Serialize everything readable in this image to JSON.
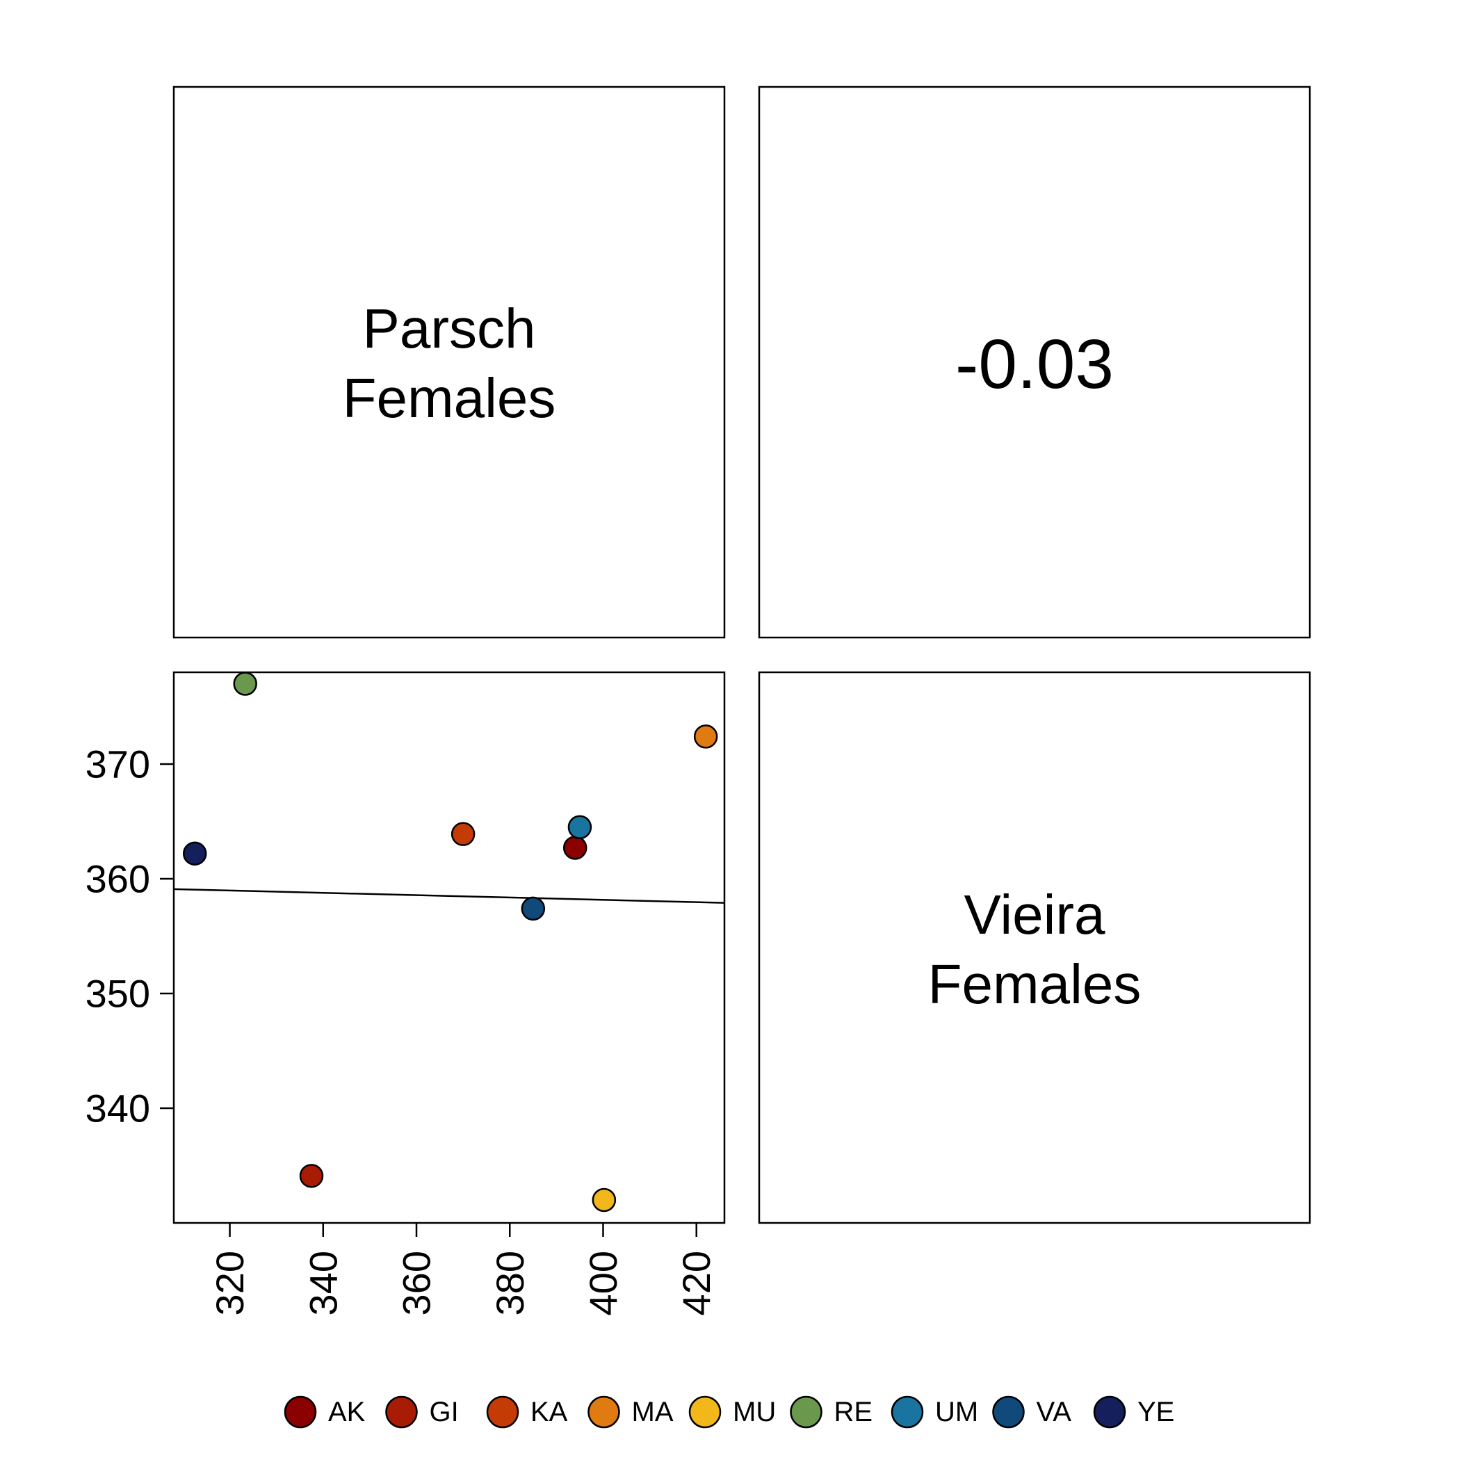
{
  "chart_data": {
    "type": "scatter",
    "layout": "pairs",
    "variables": [
      [
        "Parsch",
        "Females"
      ],
      [
        "Vieira",
        "Females"
      ]
    ],
    "correlation": "-0.03",
    "xlim": [
      308,
      426
    ],
    "ylim": [
      330,
      378
    ],
    "x_ticks": [
      320,
      340,
      360,
      380,
      400,
      420
    ],
    "y_ticks": [
      340,
      350,
      360,
      370
    ],
    "fit_line": {
      "x": [
        308,
        426
      ],
      "y": [
        359.1,
        357.9
      ]
    },
    "points": [
      {
        "label": "AK",
        "x": 394,
        "y": 362.7,
        "color": "#8B0000"
      },
      {
        "label": "GI",
        "x": 337.5,
        "y": 334.1,
        "color": "#A81C05"
      },
      {
        "label": "KA",
        "x": 370,
        "y": 363.9,
        "color": "#C43B06"
      },
      {
        "label": "MA",
        "x": 422,
        "y": 372.4,
        "color": "#E07B12"
      },
      {
        "label": "MU",
        "x": 400.2,
        "y": 332.0,
        "color": "#F2B71B"
      },
      {
        "label": "RE",
        "x": 323.3,
        "y": 377.0,
        "color": "#6A994E"
      },
      {
        "label": "UM",
        "x": 395,
        "y": 364.5,
        "color": "#1A74A0"
      },
      {
        "label": "VA",
        "x": 385,
        "y": 357.4,
        "color": "#104A7A"
      },
      {
        "label": "YE",
        "x": 312.5,
        "y": 362.2,
        "color": "#141F5C"
      }
    ],
    "legend": {
      "position": "bottom",
      "entries": [
        "AK",
        "GI",
        "KA",
        "MA",
        "MU",
        "RE",
        "UM",
        "VA",
        "YE"
      ]
    }
  }
}
